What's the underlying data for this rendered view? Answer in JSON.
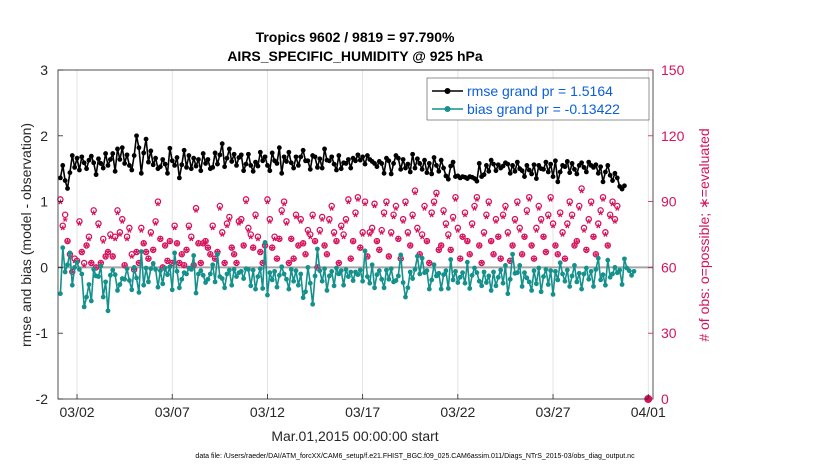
{
  "chart_data": {
    "type": "line",
    "title_line1": "Tropics 9602 / 9819 = 97.790%",
    "title_line2": "AIRS_SPECIFIC_HUMIDITY @ 925 hPa",
    "ylabel_left": "rmse and bias (model - observation)",
    "ylabel_right": "# of obs: o=possible; ∗=evaluated",
    "xlabel": "Mar.01,2015 00:00:00 start",
    "footer": "data file: /Users/raeder/DAI/ATM_forcXX/CAM6_setup/f.e21.FHIST_BGC.f09_025.CAM6assim.011/Diags_NTrS_2015-03/obs_diag_output.nc",
    "x_range_days": [
      0.0,
      31.25
    ],
    "ylim_left": [
      -2,
      3
    ],
    "ylim_right": [
      0,
      150
    ],
    "left_ticks": [
      "-2",
      "-1",
      "0",
      "1",
      "2",
      "3"
    ],
    "right_ticks": [
      "0",
      "30",
      "60",
      "90",
      "120",
      "150"
    ],
    "x_ticks": [
      {
        "day": 1.0,
        "label": "03/02"
      },
      {
        "day": 6.0,
        "label": "03/07"
      },
      {
        "day": 11.0,
        "label": "03/12"
      },
      {
        "day": 16.0,
        "label": "03/17"
      },
      {
        "day": 21.0,
        "label": "03/22"
      },
      {
        "day": 26.0,
        "label": "03/27"
      },
      {
        "day": 31.0,
        "label": "04/01"
      }
    ],
    "time_step_days": 0.125,
    "series": [
      {
        "name": "rmse grand pr = 1.5164",
        "color": "#000000",
        "axis": "left",
        "start_day": 0.125,
        "values": [
          1.36,
          1.55,
          1.32,
          1.2,
          1.44,
          1.7,
          1.52,
          1.66,
          1.48,
          1.68,
          1.59,
          1.5,
          1.63,
          1.69,
          1.59,
          1.41,
          1.65,
          1.58,
          1.51,
          1.73,
          1.55,
          1.64,
          1.73,
          1.46,
          1.8,
          1.64,
          1.82,
          1.58,
          1.71,
          1.55,
          1.48,
          1.7,
          2.0,
          1.82,
          1.43,
          1.74,
          1.95,
          1.6,
          1.77,
          1.56,
          1.66,
          1.5,
          1.53,
          1.64,
          1.57,
          1.43,
          1.81,
          1.62,
          1.55,
          1.67,
          1.36,
          1.56,
          1.78,
          1.52,
          1.7,
          1.5,
          1.66,
          1.54,
          1.64,
          1.47,
          1.73,
          1.58,
          1.64,
          1.5,
          1.52,
          1.74,
          1.57,
          1.71,
          1.88,
          1.53,
          1.66,
          1.8,
          1.61,
          1.72,
          1.55,
          1.67,
          1.71,
          1.47,
          1.57,
          1.72,
          1.55,
          1.46,
          1.6,
          1.54,
          1.75,
          1.62,
          1.68,
          1.55,
          1.47,
          1.74,
          1.62,
          1.58,
          1.82,
          1.43,
          1.68,
          1.61,
          1.75,
          1.59,
          1.51,
          1.68,
          1.55,
          1.68,
          1.78,
          1.62,
          1.62,
          1.49,
          1.7,
          1.68,
          1.52,
          1.65,
          1.51,
          1.8,
          1.63,
          1.62,
          1.68,
          1.57,
          1.48,
          1.7,
          1.5,
          1.59,
          1.58,
          1.64,
          1.51,
          1.66,
          1.62,
          1.71,
          1.63,
          1.68,
          1.57,
          1.7,
          1.64,
          1.61,
          1.58,
          1.53,
          1.61,
          1.58,
          1.43,
          1.66,
          1.62,
          1.42,
          1.58,
          1.7,
          1.66,
          1.49,
          1.64,
          1.51,
          1.57,
          1.45,
          1.72,
          1.51,
          1.65,
          1.58,
          1.49,
          1.63,
          1.44,
          1.58,
          1.42,
          1.67,
          1.55,
          1.46,
          1.63,
          1.51,
          1.39,
          1.34,
          1.54,
          1.6,
          1.38,
          1.39,
          1.36,
          1.38,
          1.37,
          1.35,
          1.38,
          1.37,
          1.35,
          1.31,
          1.58,
          1.38,
          1.41,
          1.55,
          1.46,
          1.63,
          1.57,
          1.47,
          1.56,
          1.51,
          1.54,
          1.59,
          1.57,
          1.43,
          1.55,
          1.46,
          1.6,
          1.5,
          1.47,
          1.38,
          1.55,
          1.48,
          1.42,
          1.56,
          1.35,
          1.55,
          1.5,
          1.49,
          1.6,
          1.45,
          1.57,
          1.38,
          1.62,
          1.3,
          1.45,
          1.55,
          1.53,
          1.61,
          1.44,
          1.58,
          1.49,
          1.42,
          1.55,
          1.59,
          1.52,
          1.45,
          1.6,
          1.55,
          1.52,
          1.56,
          1.43,
          1.53,
          1.3,
          1.45,
          1.55,
          1.4,
          1.32,
          1.43,
          1.36,
          1.23,
          1.19,
          1.24
        ]
      },
      {
        "name": "bias grand pr = -0.13422",
        "color": "#14918c",
        "axis": "left",
        "start_day": 0.125,
        "values": [
          -0.4,
          0.3,
          -0.07,
          0.04,
          0.22,
          -0.27,
          -0.0,
          0.08,
          -0.03,
          -0.1,
          -0.6,
          -0.45,
          -0.26,
          -0.51,
          -0.03,
          -0.13,
          -0.14,
          0.02,
          -0.45,
          -0.22,
          -0.66,
          -0.12,
          -0.04,
          -0.11,
          -0.35,
          -0.26,
          -0.17,
          -0.18,
          -0.02,
          -0.2,
          -0.34,
          0.0,
          -0.16,
          -0.38,
          0.24,
          -0.27,
          -0.01,
          -0.22,
          -0.02,
          0.06,
          -0.03,
          -0.3,
          -0.05,
          -0.25,
          -0.01,
          -0.11,
          0.01,
          -0.34,
          0.22,
          -0.06,
          -0.31,
          -0.18,
          -0.08,
          -0.1,
          -0.01,
          -0.03,
          0.18,
          -0.39,
          -0.1,
          -0.05,
          -0.12,
          -0.23,
          -0.18,
          -0.1,
          0.04,
          -0.22,
          0.2,
          -0.14,
          -0.17,
          -0.31,
          -0.1,
          -0.04,
          -0.27,
          -0.03,
          -0.14,
          -0.08,
          -0.06,
          -0.17,
          -0.02,
          -0.03,
          -0.28,
          -0.04,
          -0.33,
          -0.14,
          -0.02,
          -0.32,
          0.38,
          -0.42,
          -0.08,
          -0.19,
          -0.06,
          -0.3,
          -0.12,
          0.01,
          -0.1,
          -0.18,
          -0.33,
          -0.03,
          -0.21,
          -0.05,
          -0.27,
          -0.1,
          -0.46,
          -0.37,
          0.0,
          -0.24,
          -0.56,
          -0.13,
          0.28,
          -0.05,
          -0.21,
          -0.02,
          -0.35,
          -0.13,
          -0.06,
          -0.28,
          -0.01,
          -0.1,
          -0.05,
          -0.27,
          -0.03,
          -0.14,
          -0.07,
          -0.2,
          -0.07,
          -0.11,
          -0.04,
          -0.21,
          0.25,
          -0.14,
          -0.24,
          0.04,
          -0.31,
          -0.11,
          -0.05,
          -0.18,
          -0.31,
          -0.04,
          -0.18,
          -0.02,
          -0.22,
          -0.2,
          -0.13,
          0.19,
          -0.23,
          -0.45,
          -0.31,
          -0.07,
          -0.17,
          -0.03,
          0.17,
          -0.1,
          0.14,
          -0.08,
          -0.05,
          -0.33,
          -0.19,
          0.04,
          -0.13,
          -0.09,
          -0.33,
          -0.11,
          -0.05,
          -0.32,
          0.12,
          -0.19,
          -0.06,
          -0.23,
          -0.15,
          -0.08,
          -0.24,
          0.08,
          -0.32,
          -0.12,
          -0.01,
          -0.08,
          -0.21,
          -0.28,
          -0.07,
          -0.23,
          -0.13,
          -0.35,
          -0.07,
          -0.28,
          -0.15,
          -0.04,
          -0.24,
          0.03,
          -0.4,
          -0.18,
          0.2,
          -0.09,
          -0.08,
          0.03,
          -0.29,
          -0.08,
          -0.16,
          -0.22,
          -0.35,
          -0.05,
          -0.25,
          -0.01,
          -0.37,
          -0.14,
          -0.03,
          -0.26,
          -0.05,
          -0.41,
          -0.06,
          -0.19,
          0.07,
          -0.1,
          -0.21,
          -0.04,
          -0.29,
          -0.13,
          0.03,
          -0.22,
          -0.09,
          -0.33,
          -0.1,
          -0.01,
          -0.18,
          -0.06,
          -0.29,
          -0.03,
          0.14,
          -0.19,
          -0.11,
          -0.27,
          0.11,
          -0.15,
          -0.1,
          0.0,
          -0.08,
          -0.04,
          -0.26,
          0.13,
          -0.01,
          -0.05,
          -0.12,
          -0.06
        ]
      },
      {
        "name": "possible obs",
        "color": "#d6125c",
        "axis": "right",
        "marker": "o",
        "start_day": 0.125,
        "values": [
          91,
          79,
          84,
          72,
          66,
          58,
          64,
          63,
          81,
          67,
          62,
          70,
          74,
          62,
          86,
          60,
          80,
          62,
          73,
          65,
          67,
          75,
          65,
          74,
          86,
          76,
          82,
          61,
          74,
          78,
          66,
          59,
          67,
          62,
          78,
          71,
          67,
          64,
          76,
          68,
          81,
          90,
          73,
          60,
          70,
          63,
          72,
          62,
          79,
          71,
          62,
          66,
          61,
          68,
          79,
          74,
          61,
          87,
          71,
          62,
          71,
          72,
          69,
          66,
          79,
          64,
          67,
          88,
          76,
          62,
          80,
          83,
          69,
          66,
          62,
          81,
          82,
          70,
          91,
          78,
          75,
          69,
          84,
          74,
          67,
          62,
          70,
          91,
          82,
          69,
          74,
          64,
          73,
          86,
          90,
          81,
          62,
          73,
          64,
          84,
          70,
          82,
          71,
          66,
          77,
          75,
          84,
          72,
          60,
          77,
          83,
          70,
          66,
          82,
          88,
          76,
          72,
          62,
          79,
          75,
          82,
          91,
          64,
          72,
          85,
          92,
          69,
          76,
          90,
          65,
          76,
          78,
          89,
          72,
          68,
          77,
          85,
          90,
          65,
          76,
          84,
          88,
          73,
          64,
          82,
          90,
          76,
          70,
          84,
          95,
          78,
          66,
          75,
          88,
          72,
          62,
          85,
          90,
          94,
          68,
          70,
          86,
          80,
          75,
          68,
          83,
          92,
          78,
          64,
          74,
          85,
          72,
          66,
          80,
          88,
          92,
          70,
          62,
          76,
          84,
          90,
          72,
          66,
          82,
          74,
          64,
          84,
          88,
          76,
          63,
          70,
          82,
          90,
          78,
          66,
          74,
          86,
          92,
          70,
          64,
          78,
          88,
          82,
          74,
          67,
          84,
          92,
          80,
          70,
          66,
          85,
          76,
          64,
          80,
          90,
          84,
          70,
          72,
          88,
          96,
          78,
          68,
          82,
          90,
          74,
          66,
          80,
          86,
          92,
          76,
          70,
          84,
          90,
          82,
          88
        ]
      },
      {
        "name": "evaluated obs",
        "color": "#d6125c",
        "axis": "right",
        "marker": "*",
        "start_day": 0.125,
        "values": [
          89,
          77,
          81,
          71,
          64,
          57,
          62,
          62,
          79,
          66,
          60,
          69,
          72,
          61,
          84,
          59,
          78,
          61,
          71,
          64,
          66,
          73,
          64,
          72,
          84,
          74,
          80,
          60,
          72,
          76,
          64,
          58,
          66,
          61,
          76,
          70,
          66,
          63,
          74,
          67,
          79,
          88,
          72,
          59,
          69,
          62,
          71,
          61,
          77,
          70,
          61,
          65,
          60,
          67,
          77,
          72,
          60,
          85,
          70,
          61,
          70,
          71,
          68,
          65,
          77,
          63,
          66,
          86,
          74,
          61,
          78,
          81,
          68,
          65,
          61,
          79,
          80,
          69,
          89,
          76,
          73,
          68,
          82,
          72,
          66,
          61,
          69,
          89,
          80,
          68,
          72,
          63,
          72,
          84,
          88,
          79,
          61,
          72,
          63,
          82,
          69,
          80,
          70,
          65,
          75,
          73,
          82,
          71,
          59,
          75,
          81,
          69,
          65,
          80,
          86,
          74,
          71,
          61,
          77,
          73,
          80,
          89,
          63,
          71,
          83,
          90,
          68,
          74,
          88,
          64,
          74,
          76,
          87,
          71,
          67,
          75,
          83,
          88,
          64,
          74,
          82,
          86,
          72,
          63,
          80,
          88,
          74,
          69,
          82,
          93,
          76,
          65,
          73,
          86,
          71,
          61,
          83,
          88,
          92,
          67,
          69,
          84,
          78,
          73,
          67,
          81,
          90,
          76,
          63,
          73,
          83,
          71,
          65,
          78,
          86,
          90,
          69,
          61,
          74,
          82,
          88,
          71,
          65,
          80,
          73,
          63,
          82,
          86,
          74,
          62,
          69,
          80,
          88,
          76,
          65,
          73,
          84,
          90,
          69,
          63,
          76,
          86,
          80,
          73,
          66,
          82,
          90,
          78,
          69,
          65,
          83,
          74,
          63,
          78,
          88,
          82,
          69,
          71,
          86,
          94,
          76,
          67,
          80,
          88,
          73,
          65,
          78,
          84,
          90,
          74,
          69,
          82,
          88,
          80,
          86
        ]
      }
    ],
    "zero_line": 0,
    "end_marker": {
      "day": 31.0,
      "value": 0,
      "axis": "right",
      "color": "#d6125c"
    },
    "legend": {
      "position": "top-right",
      "entries": [
        "rmse grand pr = 1.5164",
        "bias grand pr = -0.13422"
      ]
    },
    "grid_x": true
  }
}
